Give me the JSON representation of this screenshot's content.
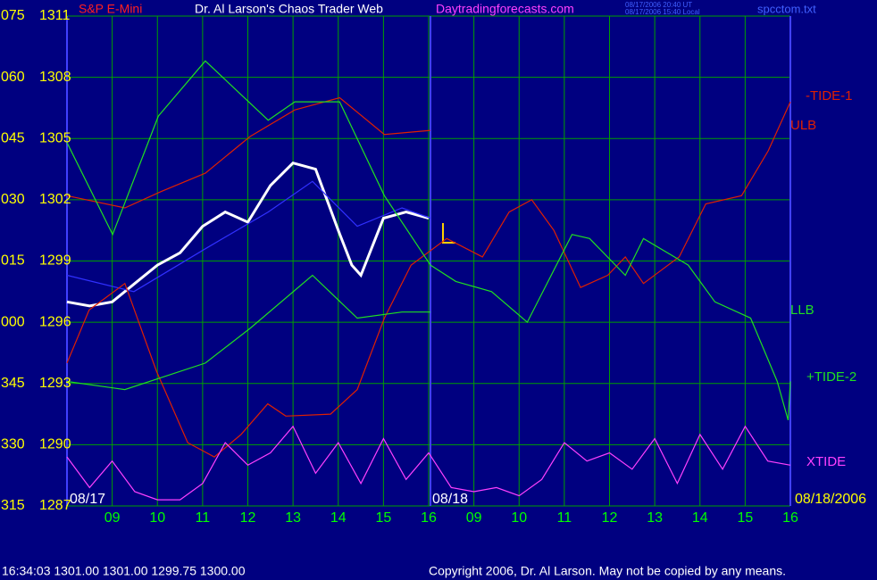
{
  "chart_data": {
    "type": "line",
    "symbol": "S&P E-Mini",
    "title": "Dr. Al Larson's Chaos Trader Web",
    "subtitle": "Daytradingforecasts.com",
    "timestamp_ut": "08/17/2006 20:40 UT",
    "timestamp_local": "08/17/2006 15:40 Local",
    "file_name": "spcctom.txt",
    "footer_quote": "16:34:03  1301.00 1301.00 1299.75 1300.00",
    "copyright": "Copyright 2006, Dr. Al Larson. May not be copied by any means.",
    "date_labels": [
      "08/17",
      "08/18",
      "08/18/2006"
    ],
    "y_angle_labels": [
      "075",
      "060",
      "045",
      "030",
      "015",
      "000",
      "345",
      "330",
      "315"
    ],
    "ylim": [
      1287,
      1311
    ],
    "yticks": [
      1311,
      1308,
      1305,
      1302,
      1299,
      1296,
      1293,
      1290,
      1287
    ],
    "xlim": [
      8,
      24
    ],
    "xticks": [
      {
        "value": 9,
        "label": "09"
      },
      10,
      11,
      12,
      13,
      14,
      15,
      16,
      {
        "value": 17,
        "label": "09"
      },
      {
        "value": 18,
        "label": "10"
      },
      {
        "value": 19,
        "label": "11"
      },
      {
        "value": 20,
        "label": "12"
      },
      {
        "value": 21,
        "label": "13"
      },
      {
        "value": 22,
        "label": "14"
      },
      {
        "value": 23,
        "label": "15"
      },
      {
        "value": 24,
        "label": "16"
      }
    ],
    "grid": true,
    "series": [
      {
        "color": "#ffffff",
        "x": [
          8.0,
          8.5,
          9.0,
          9.5,
          10,
          10.5,
          11,
          11.5,
          12,
          12.5,
          13,
          13.5,
          14,
          14.3,
          14.5,
          15,
          15.5,
          16
        ],
        "values": [
          1297.0,
          1296.8,
          1297.0,
          1297.9,
          1298.8,
          1299.4,
          1300.7,
          1301.4,
          1300.9,
          1302.7,
          1303.8,
          1303.5,
          1300.5,
          1298.8,
          1298.3,
          1301.1,
          1301.4,
          1301.1
        ]
      },
      {
        "color": "#3030ff",
        "x": [
          8.0,
          9.48,
          11.06,
          12.45,
          13.43,
          14.42,
          15.41,
          16.04
        ],
        "values": [
          1298.3,
          1297.5,
          1299.6,
          1301.4,
          1302.9,
          1300.7,
          1301.6,
          1301.1
        ]
      },
      {
        "name": "-TIDE-1",
        "color": "#e02000",
        "x": [
          8.0,
          8.49,
          9.28,
          9.98,
          10.67,
          11.26,
          11.85,
          12.44,
          12.84,
          13.83,
          14.42,
          15.02,
          15.61,
          16.4,
          17.19,
          17.78,
          18.28,
          18.77,
          19.36,
          19.96,
          20.35,
          20.75,
          21.54,
          22.13,
          22.92,
          23.51,
          24.0
        ],
        "values": [
          1294.0,
          1296.6,
          1297.9,
          1293.6,
          1290.1,
          1289.4,
          1290.5,
          1292.0,
          1291.4,
          1291.5,
          1292.7,
          1296.2,
          1298.8,
          1300.1,
          1299.2,
          1301.4,
          1302.0,
          1300.5,
          1297.7,
          1298.3,
          1299.2,
          1297.9,
          1299.2,
          1301.8,
          1302.2,
          1304.4,
          1306.8
        ]
      },
      {
        "name": "ULB",
        "color": "#e02000",
        "x": [
          8.0,
          9.28,
          10.08,
          11.06,
          12.05,
          13.04,
          14.03,
          15.02,
          16.04
        ],
        "values": [
          1302.2,
          1301.6,
          1302.4,
          1303.3,
          1305.1,
          1306.4,
          1307.0,
          1305.2,
          1305.4
        ]
      },
      {
        "name": "LLB",
        "color": "#20e020",
        "x": [
          8.0,
          9.28,
          11.06,
          12.05,
          13.43,
          14.42,
          15.41,
          16.04
        ],
        "values": [
          1293.1,
          1292.7,
          1294.0,
          1295.7,
          1298.3,
          1296.2,
          1296.5,
          1296.5
        ]
      },
      {
        "name": "+TIDE-2",
        "color": "#20e020",
        "x": [
          8.0,
          9.01,
          10.02,
          11.06,
          12.45,
          13.04,
          14.03,
          15.02,
          16.04,
          16.6,
          17.39,
          18.18,
          19.17,
          19.56,
          20.35,
          20.75,
          21.74,
          22.33,
          23.12,
          23.71,
          23.95,
          24.0
        ],
        "values": [
          1304.8,
          1300.3,
          1306.1,
          1308.8,
          1305.9,
          1306.8,
          1306.8,
          1302.2,
          1298.8,
          1298.0,
          1297.5,
          1296.0,
          1300.3,
          1300.1,
          1298.3,
          1300.1,
          1298.8,
          1297.0,
          1296.2,
          1293.1,
          1291.2,
          1293.1
        ]
      },
      {
        "name": "XTIDE",
        "color": "#ff40ff",
        "x": [
          8.0,
          8.5,
          9.0,
          9.5,
          10.0,
          10.5,
          11.0,
          11.5,
          12.0,
          12.5,
          13.0,
          13.5,
          14.0,
          14.5,
          15.0,
          15.5,
          16.0,
          16.5,
          17.0,
          17.5,
          18.0,
          18.5,
          19.0,
          19.5,
          20.0,
          20.5,
          21.0,
          21.5,
          22.0,
          22.5,
          23.0,
          23.5,
          24.0
        ],
        "values": [
          1289.4,
          1287.9,
          1289.2,
          1287.7,
          1287.3,
          1287.3,
          1288.1,
          1290.1,
          1289.0,
          1289.6,
          1290.9,
          1288.6,
          1290.1,
          1288.1,
          1290.3,
          1288.3,
          1289.6,
          1287.9,
          1287.7,
          1287.9,
          1287.5,
          1288.3,
          1290.1,
          1289.2,
          1289.6,
          1288.8,
          1290.3,
          1288.1,
          1290.5,
          1288.8,
          1290.9,
          1289.2,
          1289.0
        ]
      }
    ]
  }
}
